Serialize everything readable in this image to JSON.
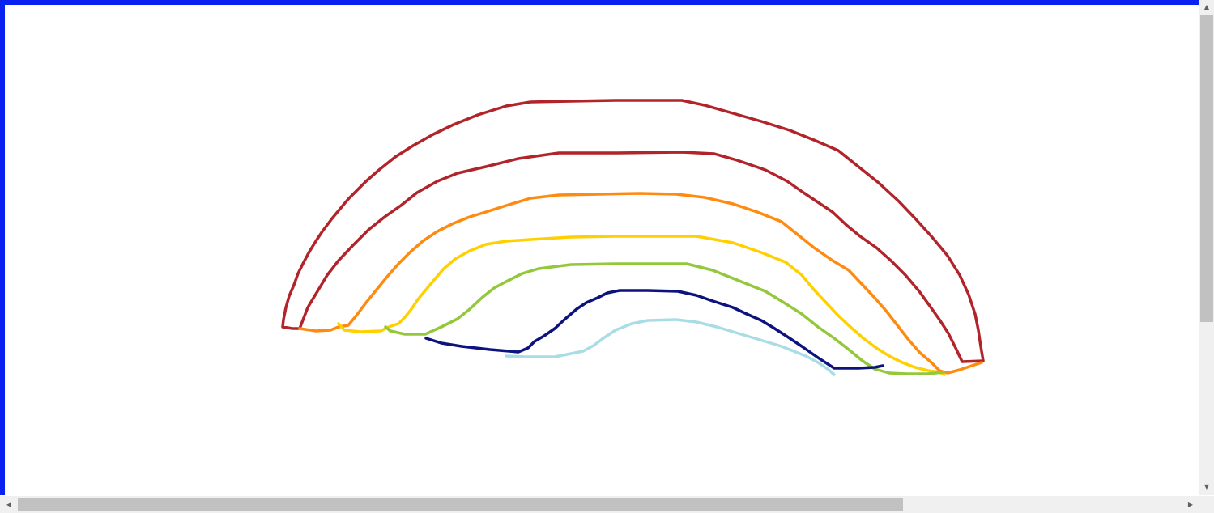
{
  "colors": {
    "frame": "#0a22f0",
    "canvas_background": "#ffffff",
    "stroke_red": "#b0242a",
    "stroke_orange": "#ff8a10",
    "stroke_yellow": "#ffd000",
    "stroke_green": "#92c83a",
    "stroke_navy": "#0c137f",
    "stroke_lightblue": "#a8dde6"
  },
  "drawing": {
    "subject": "rainbow",
    "strokes": [
      {
        "name": "outer-red-arc",
        "color": "#b0242a"
      },
      {
        "name": "inner-red-arc",
        "color": "#b0242a"
      },
      {
        "name": "orange-arc",
        "color": "#ff8a10"
      },
      {
        "name": "yellow-arc",
        "color": "#ffd000"
      },
      {
        "name": "green-arc",
        "color": "#92c83a"
      },
      {
        "name": "navy-arc",
        "color": "#0c137f"
      },
      {
        "name": "lightblue-arc",
        "color": "#a8dde6"
      }
    ]
  },
  "scrollbars": {
    "up_arrow": "▲",
    "down_arrow": "▼",
    "left_arrow": "◀",
    "right_arrow": "▶"
  }
}
